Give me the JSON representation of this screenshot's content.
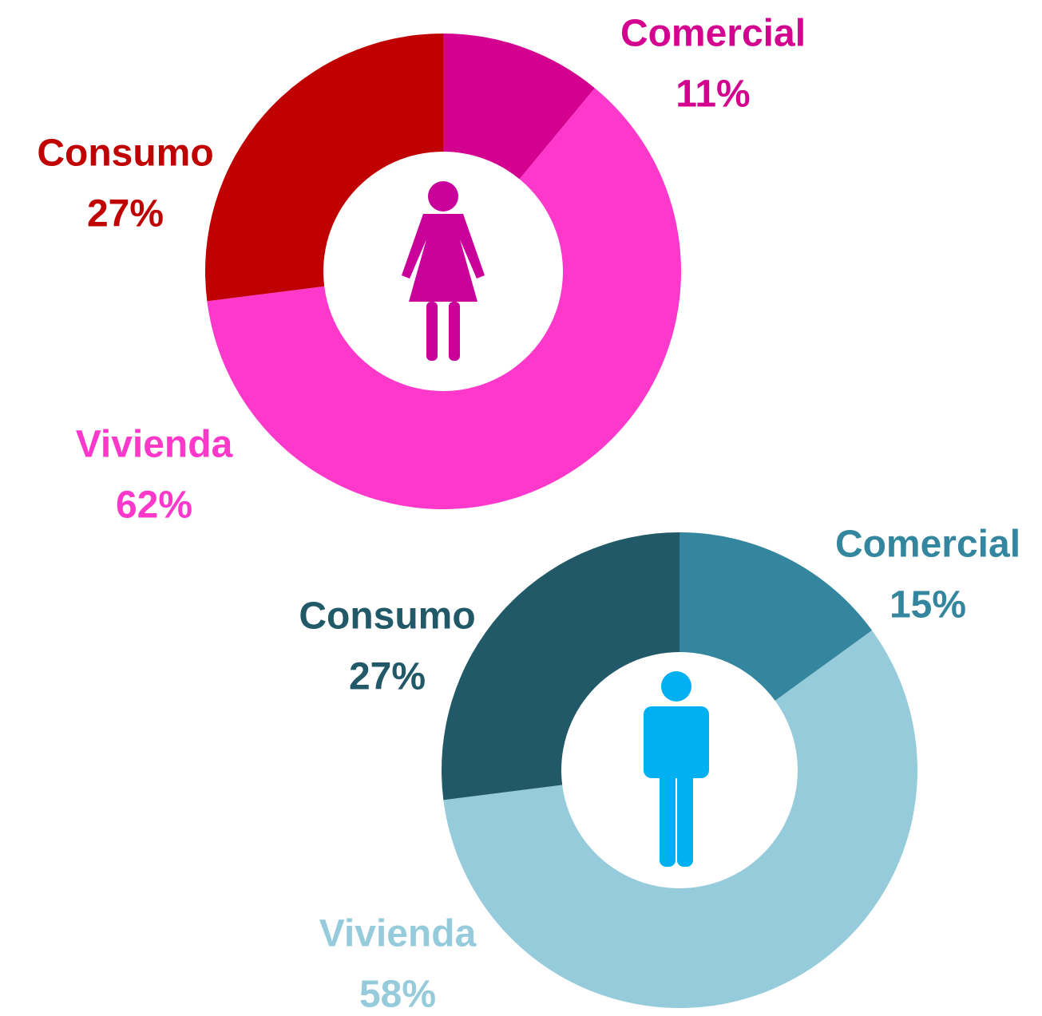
{
  "chart_data": [
    {
      "type": "donut",
      "categories": [
        "Comercial",
        "Vivienda",
        "Consumo"
      ],
      "values": [
        11,
        62,
        27
      ],
      "value_labels": [
        "11%",
        "62%",
        "27%"
      ],
      "colors": [
        "#d4008f",
        "#ff38cc",
        "#c00000"
      ]
    },
    {
      "type": "donut",
      "categories": [
        "Comercial",
        "Vivienda",
        "Consumo"
      ],
      "values": [
        15,
        58,
        27
      ],
      "value_labels": [
        "15%",
        "58%",
        "27%"
      ],
      "colors": [
        "#33869e",
        "#96cbdc",
        "#215968"
      ]
    }
  ]
}
